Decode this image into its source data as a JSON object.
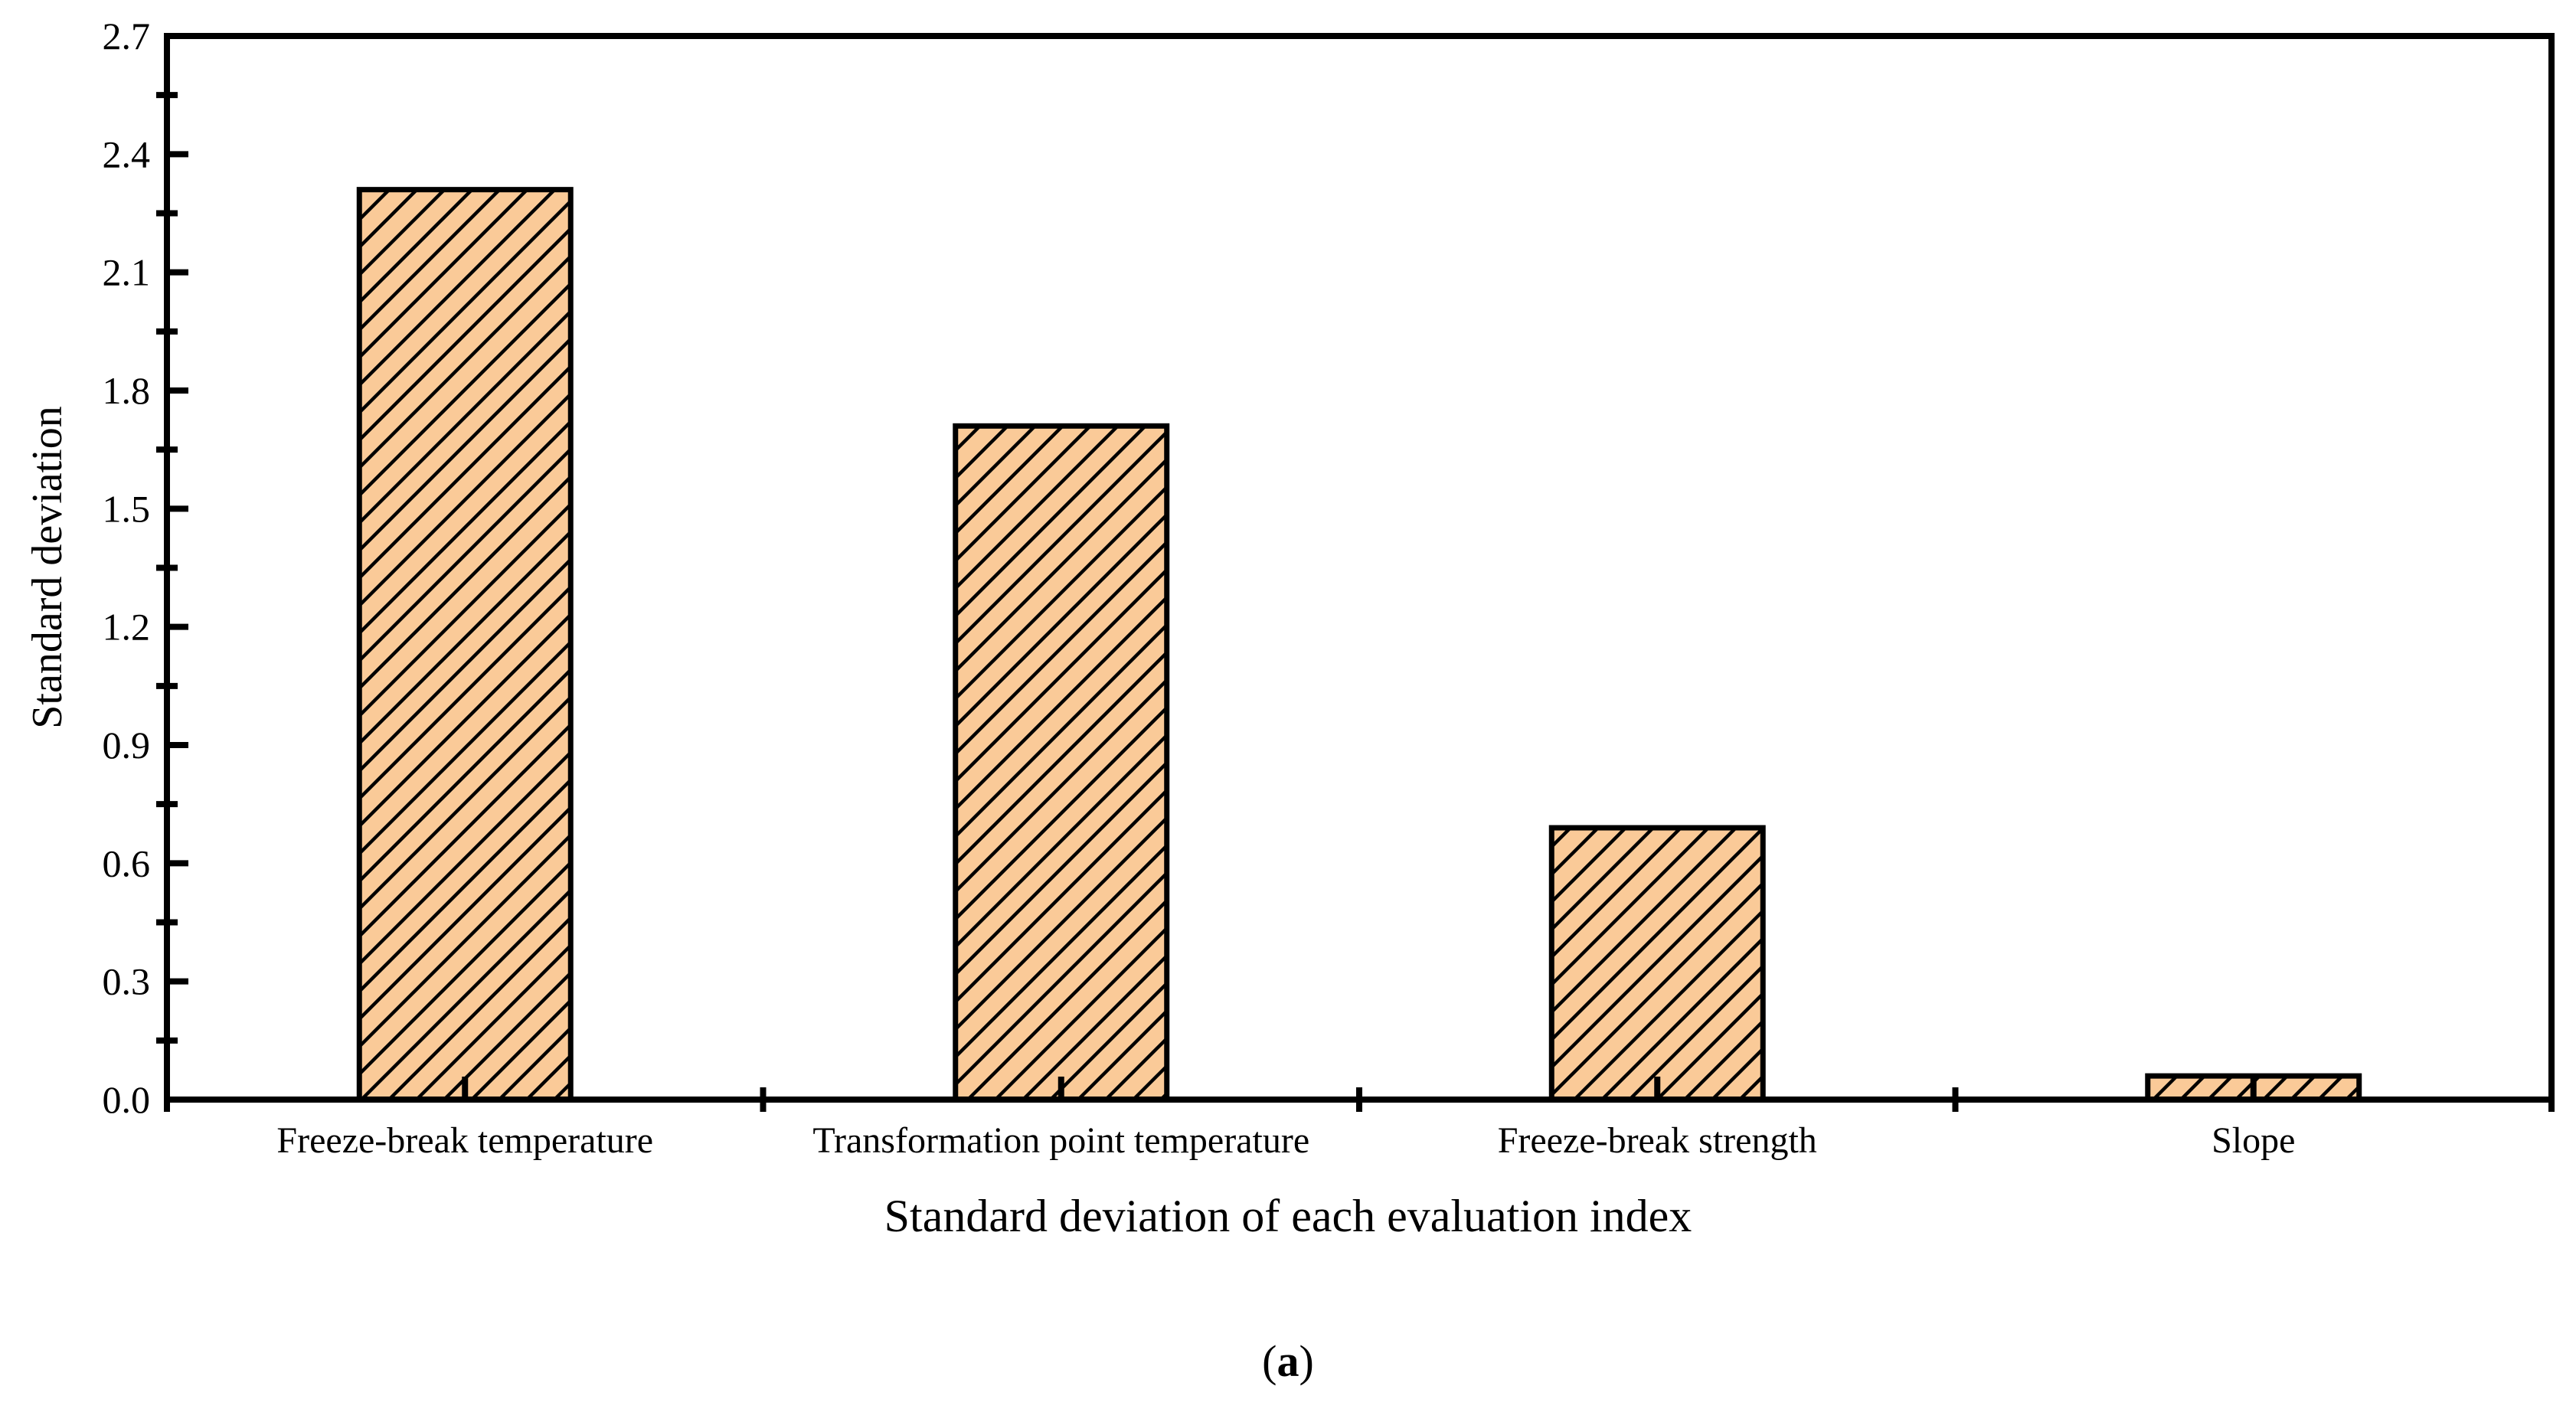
{
  "figure": {
    "caption_open": "(",
    "caption_letter": "a",
    "caption_close": ")"
  },
  "chart_data": {
    "type": "bar",
    "title": "",
    "categories": [
      "Freeze-break temperature",
      "Transformation point temperature",
      "Freeze-break strength",
      "Slope"
    ],
    "values": [
      2.31,
      1.71,
      0.69,
      0.06
    ],
    "xlabel": "Standard deviation of each evaluation index",
    "ylabel": "Standard deviation",
    "ylim": [
      0,
      2.7
    ],
    "y_major_step": 0.3,
    "y_minor_step": 0.15,
    "y_tick_labels": [
      "0.0",
      "0.3",
      "0.6",
      "0.9",
      "1.2",
      "1.5",
      "1.8",
      "2.1",
      "2.4",
      "2.7"
    ],
    "bar_width_fraction": 0.3545,
    "hatch": "forward-diagonal",
    "grid": false,
    "legend": null,
    "colors": {
      "bar_fill": "#FACA98",
      "bar_edge": "#000000",
      "axis": "#000000",
      "text": "#000000",
      "background": "#FFFFFF"
    }
  }
}
